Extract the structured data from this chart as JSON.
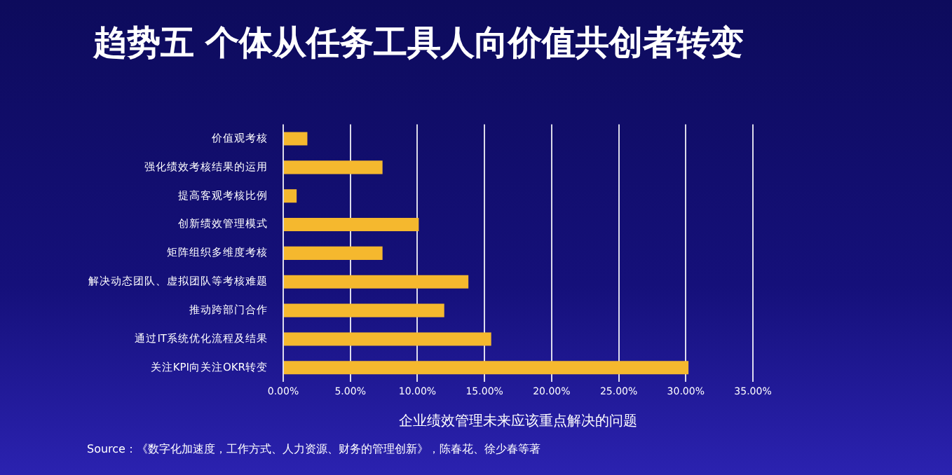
{
  "chart_data": {
    "type": "bar",
    "orientation": "horizontal",
    "title": "趋势五 个体从任务工具人向价值共创者转变",
    "xlabel": "企业绩效管理未来应该重点解决的问题",
    "categories": [
      "价值观考核",
      "强化绩效考核结果的运用",
      "提高客观考核比例",
      "创新绩效管理模式",
      "矩阵组织多维度考核",
      "解决动态团队、虚拟团队等考核难题",
      "推动跨部门合作",
      "通过IT系统优化流程及结果",
      "关注KPI向关注OKR转变"
    ],
    "values": [
      1.8,
      7.4,
      1.0,
      10.1,
      7.4,
      13.8,
      12.0,
      15.5,
      30.2
    ],
    "color": "#f5b82e",
    "xlim": [
      0,
      35
    ],
    "xticks": [
      {
        "value": 0,
        "label": "0.00%"
      },
      {
        "value": 5,
        "label": "5.00%"
      },
      {
        "value": 10,
        "label": "10.00%"
      },
      {
        "value": 15,
        "label": "15.00%"
      },
      {
        "value": 20,
        "label": "20.00%"
      },
      {
        "value": 25,
        "label": "25.00%"
      },
      {
        "value": 30,
        "label": "30.00%"
      },
      {
        "value": 35,
        "label": "35.00%"
      }
    ],
    "grid": "x",
    "annotations": [
      "Source：《数字化加速度，工作方式、人力资源、财务的管理创新》，陈春花、徐少春等著"
    ]
  }
}
